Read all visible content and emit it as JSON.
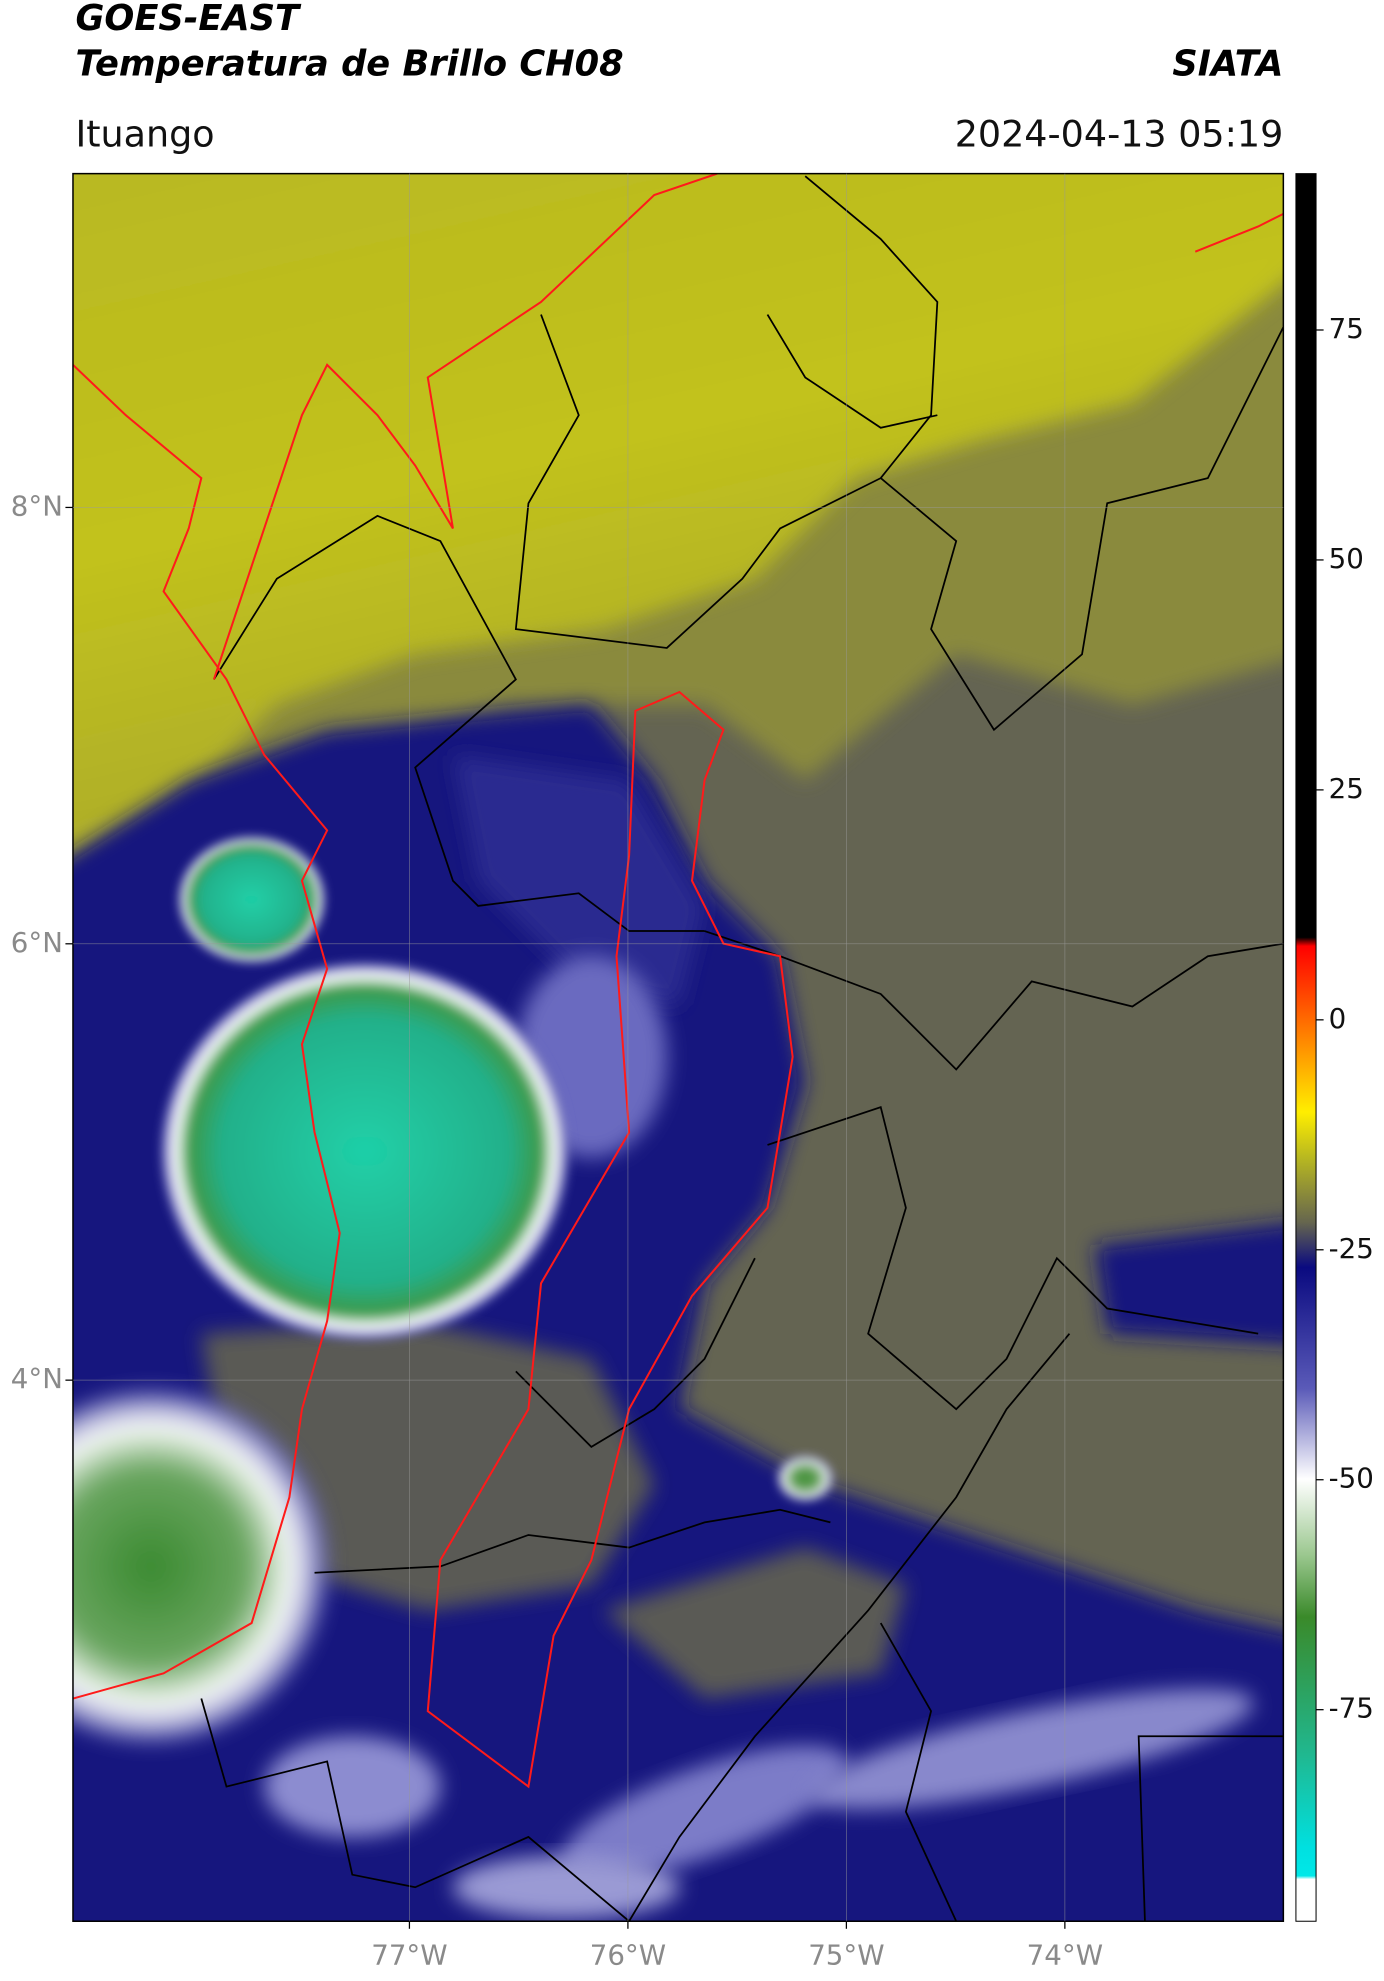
{
  "header": {
    "title": "GOES-EAST",
    "subtitle": "Temperatura de Brillo CH08",
    "brand": "SIATA",
    "location": "Ituango",
    "datetime": "2024-04-13 05:19"
  },
  "map": {
    "xlim": [
      -78.54,
      -73.0
    ],
    "ylim": [
      1.52,
      9.53
    ],
    "xticks": [
      {
        "value": -77,
        "label": "77°W"
      },
      {
        "value": -76,
        "label": "76°W"
      },
      {
        "value": -75,
        "label": "75°W"
      },
      {
        "value": -74,
        "label": "74°W"
      }
    ],
    "yticks": [
      {
        "value": 8,
        "label": "8°N"
      },
      {
        "value": 6,
        "label": "6°N"
      },
      {
        "value": 4,
        "label": "4°N"
      }
    ],
    "grid": true
  },
  "colorbar": {
    "lim": [
      -98,
      92
    ],
    "ticks": [
      75,
      50,
      25,
      0,
      -25,
      -50,
      -75
    ]
  }
}
